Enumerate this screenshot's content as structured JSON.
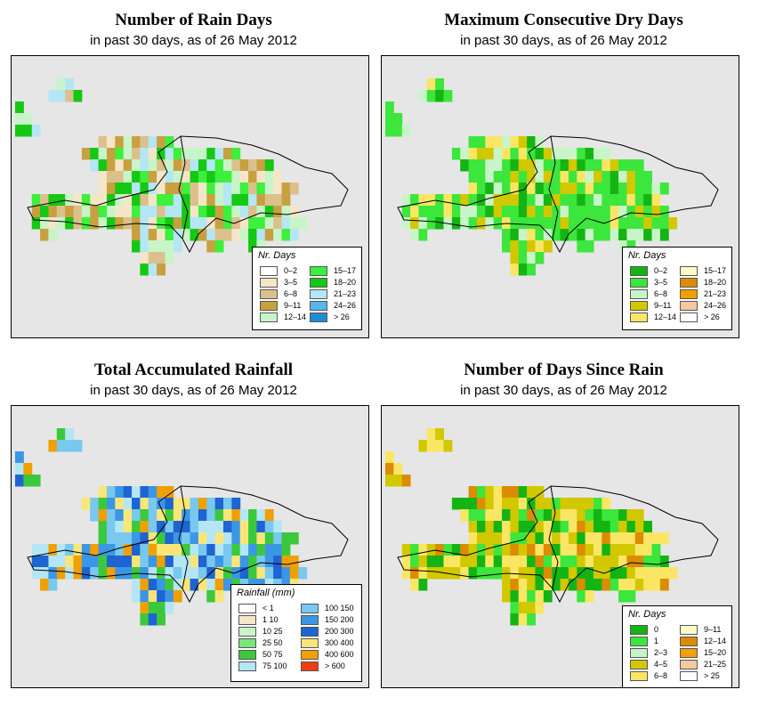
{
  "panels": [
    {
      "title": "Number of Rain Days",
      "subtitle": "in past 30 days, as of  26 May 2012",
      "legend_title": "Nr. Days",
      "legend": [
        {
          "label": "0–2",
          "color": "#ffffff"
        },
        {
          "label": "3–5",
          "color": "#f5e6c8"
        },
        {
          "label": "6–8",
          "color": "#dcc08c"
        },
        {
          "label": "9–11",
          "color": "#c8a040"
        },
        {
          "label": "12–14",
          "color": "#c8f5c8"
        },
        {
          "label": "15–17",
          "color": "#3cf03c"
        },
        {
          "label": "18–20",
          "color": "#14c814"
        },
        {
          "label": "21–23",
          "color": "#b4e6f5"
        },
        {
          "label": "24–26",
          "color": "#5ab4f0"
        },
        {
          "label": "> 26",
          "color": "#1e8cd2"
        }
      ]
    },
    {
      "title": "Maximum Consecutive Dry Days",
      "subtitle": "in past 30 days, as of  26 May 2012",
      "legend_title": "Nr. Days",
      "legend": [
        {
          "label": "0–2",
          "color": "#14b414"
        },
        {
          "label": "3–5",
          "color": "#3ce63c"
        },
        {
          "label": "6–8",
          "color": "#c8f5c8"
        },
        {
          "label": "9–11",
          "color": "#d2c800"
        },
        {
          "label": "12–14",
          "color": "#fae664"
        },
        {
          "label": "15–17",
          "color": "#fffac8"
        },
        {
          "label": "18–20",
          "color": "#dc8c00"
        },
        {
          "label": "21–23",
          "color": "#f0a000"
        },
        {
          "label": "24–26",
          "color": "#f5c8a0"
        },
        {
          "label": "> 26",
          "color": "#ffffff"
        }
      ]
    },
    {
      "title": "Total Accumulated Rainfall",
      "subtitle": "in past 30 days, as of  26 May 2012",
      "legend_title": "Rainfall (mm)",
      "legend": [
        {
          "label": "< 1",
          "color": "#ffffff"
        },
        {
          "label": "1     10",
          "color": "#f5e6c8"
        },
        {
          "label": "10    25",
          "color": "#c8f5c8"
        },
        {
          "label": "25    50",
          "color": "#78e678"
        },
        {
          "label": "50    75",
          "color": "#3cc83c"
        },
        {
          "label": "75   100",
          "color": "#b4e6f5"
        },
        {
          "label": "100   150",
          "color": "#78c8f0"
        },
        {
          "label": "150   200",
          "color": "#3c96e6"
        },
        {
          "label": "200   300",
          "color": "#1e64d2"
        },
        {
          "label": "300   400",
          "color": "#fae678"
        },
        {
          "label": "400   600",
          "color": "#f0a000"
        },
        {
          "label": "> 600",
          "color": "#f03c14"
        }
      ]
    },
    {
      "title": "Number of Days Since Rain",
      "subtitle": "in past 30 days, as of  26 May 2012",
      "legend_title": "Nr. Days",
      "legend": [
        {
          "label": "0",
          "color": "#14b414"
        },
        {
          "label": "1",
          "color": "#3ce63c"
        },
        {
          "label": "2–3",
          "color": "#c8f5c8"
        },
        {
          "label": "4–5",
          "color": "#d2c800"
        },
        {
          "label": "6–8",
          "color": "#fae664"
        },
        {
          "label": "9–11",
          "color": "#fffac8"
        },
        {
          "label": "12–14",
          "color": "#dc8c00"
        },
        {
          "label": "15–20",
          "color": "#f0a000"
        },
        {
          "label": "21–25",
          "color": "#f5c8a0"
        },
        {
          "label": "> 25",
          "color": "#ffffff"
        }
      ]
    }
  ]
}
